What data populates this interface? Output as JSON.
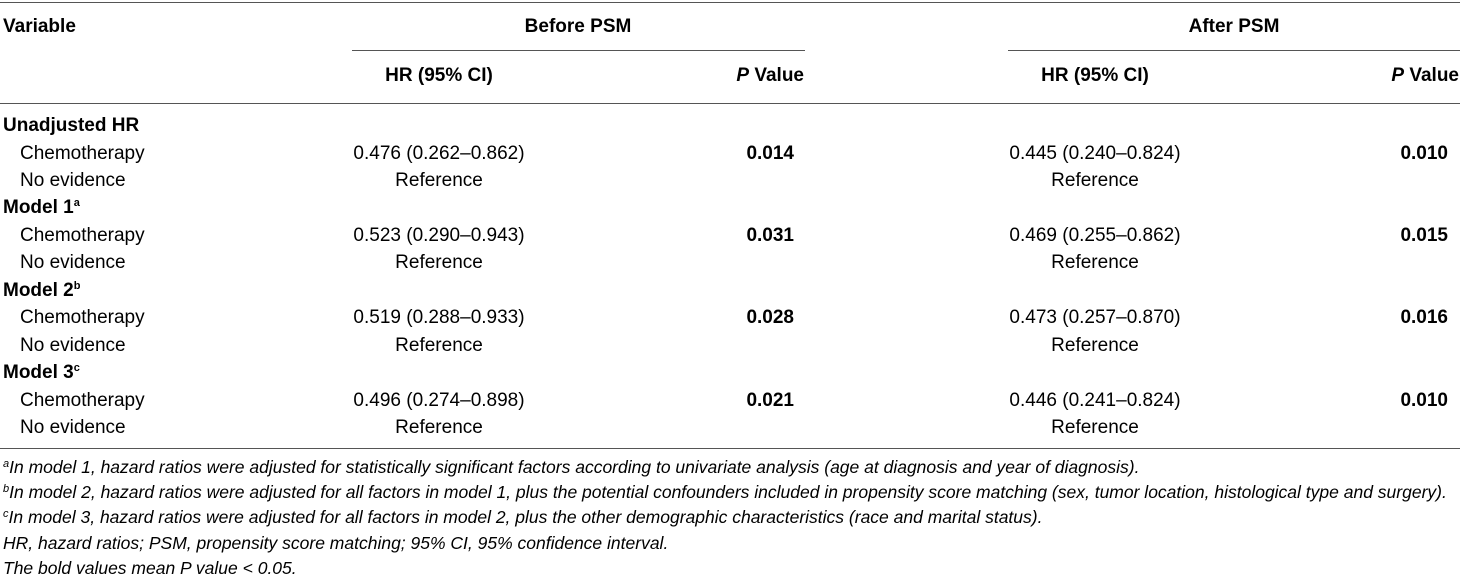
{
  "header": {
    "variable": "Variable",
    "before_psm": "Before PSM",
    "after_psm": "After PSM",
    "hr_ci": "HR (95% CI)",
    "p_letter": "P",
    "p_suffix": " Value"
  },
  "groups": [
    {
      "label": "Unadjusted HR",
      "sup": "",
      "chemo_label": "Chemotherapy",
      "ref_label": "No evidence",
      "before_hr": "0.476 (0.262–0.862)",
      "before_p": "0.014",
      "after_hr": "0.445 (0.240–0.824)",
      "after_p": "0.010",
      "reference": "Reference"
    },
    {
      "label": "Model 1",
      "sup": "a",
      "chemo_label": "Chemotherapy",
      "ref_label": "No evidence",
      "before_hr": "0.523 (0.290–0.943)",
      "before_p": "0.031",
      "after_hr": "0.469 (0.255–0.862)",
      "after_p": "0.015",
      "reference": "Reference"
    },
    {
      "label": "Model 2",
      "sup": "b",
      "chemo_label": "Chemotherapy",
      "ref_label": "No evidence",
      "before_hr": "0.519 (0.288–0.933)",
      "before_p": "0.028",
      "after_hr": "0.473 (0.257–0.870)",
      "after_p": "0.016",
      "reference": "Reference"
    },
    {
      "label": "Model 3",
      "sup": "c",
      "chemo_label": "Chemotherapy",
      "ref_label": "No evidence",
      "before_hr": "0.496 (0.274–0.898)",
      "before_p": "0.021",
      "after_hr": "0.446 (0.241–0.824)",
      "after_p": "0.010",
      "reference": "Reference"
    }
  ],
  "footnotes": [
    {
      "sup": "a",
      "text": "In model 1, hazard ratios were adjusted for statistically significant factors according to univariate analysis (age at diagnosis and year of diagnosis)."
    },
    {
      "sup": "b",
      "text": "In model 2, hazard ratios were adjusted for all factors in model 1, plus the potential confounders included in propensity score matching (sex, tumor location, histological type and surgery)."
    },
    {
      "sup": "c",
      "text": "In model 3, hazard ratios were adjusted for all factors in model 2, plus the other demographic characteristics (race and marital status)."
    },
    {
      "sup": "",
      "text": "HR, hazard ratios; PSM, propensity score matching; 95% CI, 95% confidence interval."
    },
    {
      "sup": "",
      "text": "The bold values mean P value < 0.05."
    }
  ]
}
